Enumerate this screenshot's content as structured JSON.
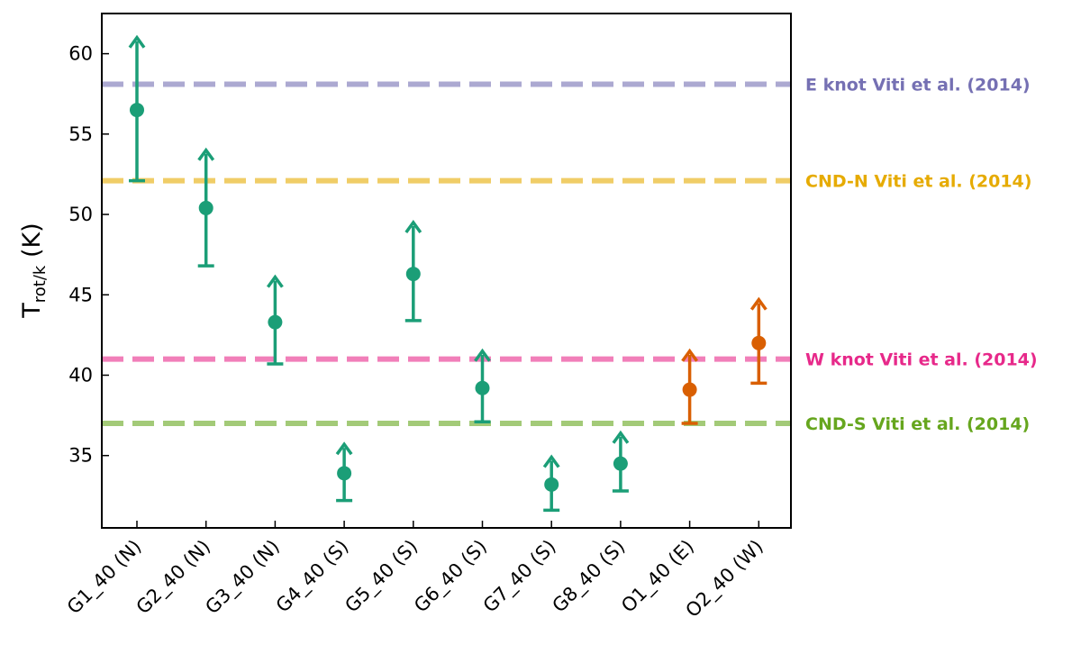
{
  "chart_data": {
    "type": "scatter",
    "ylabel": {
      "main": "T",
      "sub": "rot/k",
      "unit": " (K)"
    },
    "ylim": [
      30.5,
      62.5
    ],
    "yticks": [
      35,
      40,
      45,
      50,
      55,
      60
    ],
    "categories": [
      "G1_40 (N)",
      "G2_40 (N)",
      "G3_40 (N)",
      "G4_40 (S)",
      "G5_40 (S)",
      "G6_40 (S)",
      "G7_40 (S)",
      "G8_40 (S)",
      "O1_40 (E)",
      "O2_40 (W)"
    ],
    "series": [
      {
        "color": "#1b9e77",
        "points": [
          {
            "category": "G1_40 (N)",
            "y": 56.5,
            "lower": 52.1,
            "upper": 61.0
          },
          {
            "category": "G2_40 (N)",
            "y": 50.4,
            "lower": 46.8,
            "upper": 54.0
          },
          {
            "category": "G3_40 (N)",
            "y": 43.3,
            "lower": 40.7,
            "upper": 46.1
          },
          {
            "category": "G4_40 (S)",
            "y": 33.9,
            "lower": 32.2,
            "upper": 35.7
          },
          {
            "category": "G5_40 (S)",
            "y": 46.3,
            "lower": 43.4,
            "upper": 49.5
          },
          {
            "category": "G6_40 (S)",
            "y": 39.2,
            "lower": 37.1,
            "upper": 41.5
          },
          {
            "category": "G7_40 (S)",
            "y": 33.2,
            "lower": 31.6,
            "upper": 34.9
          },
          {
            "category": "G8_40 (S)",
            "y": 34.5,
            "lower": 32.8,
            "upper": 36.4
          }
        ]
      },
      {
        "color": "#d95f02",
        "points": [
          {
            "category": "O1_40 (E)",
            "y": 39.1,
            "lower": 37.0,
            "upper": 41.5
          },
          {
            "category": "O2_40 (W)",
            "y": 42.0,
            "lower": 39.5,
            "upper": 44.7
          }
        ]
      }
    ],
    "reference_lines": [
      {
        "label": "E knot Viti et al. (2014)",
        "y": 58.1,
        "color": "#7570b3"
      },
      {
        "label": "CND-N Viti et al. (2014)",
        "y": 52.1,
        "color": "#e6ab02"
      },
      {
        "label": "W knot Viti et al. (2014)",
        "y": 41.0,
        "color": "#e7298a"
      },
      {
        "label": "CND-S Viti et al. (2014)",
        "y": 37.0,
        "color": "#66a61e"
      }
    ],
    "grid": false
  }
}
